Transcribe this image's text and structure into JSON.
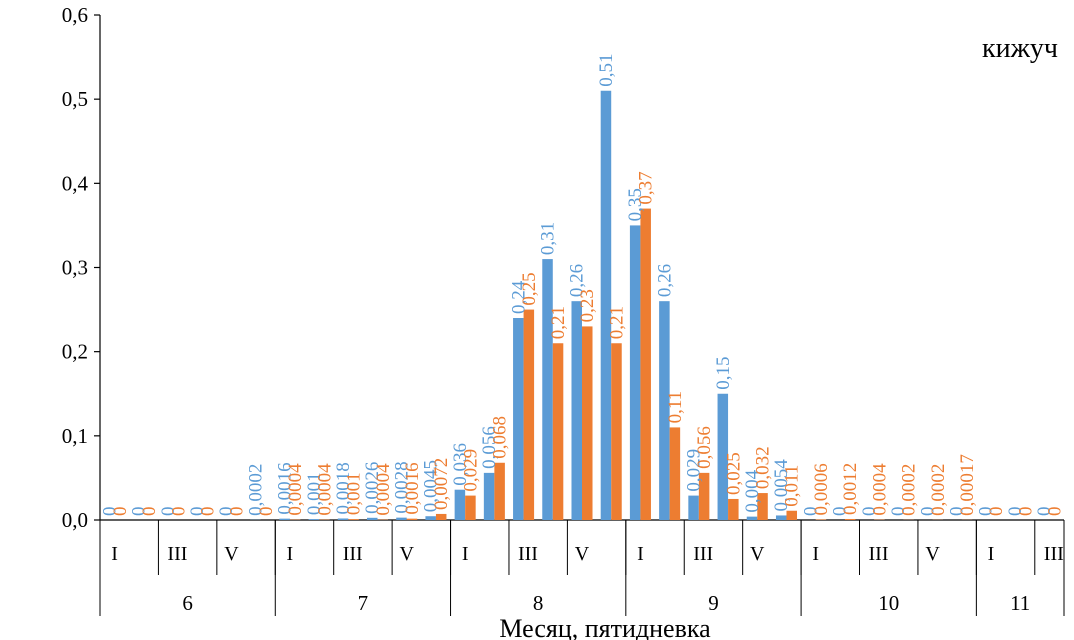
{
  "chart_data": {
    "type": "bar",
    "title": "кижуч",
    "xlabel": "Месяц, пятидневка",
    "ylabel": "",
    "ylim": [
      0,
      0.6
    ],
    "yticks": [
      "0,0",
      "0,1",
      "0,2",
      "0,3",
      "0,4",
      "0,5",
      "0,6"
    ],
    "ytick_values": [
      0,
      0.1,
      0.2,
      0.3,
      0.4,
      0.5,
      0.6
    ],
    "grid": false,
    "legend": "none",
    "categories": [
      "I",
      "",
      "III",
      "",
      "V",
      "",
      "I",
      "",
      "III",
      "",
      "V",
      "",
      "I",
      "",
      "III",
      "",
      "V",
      "",
      "I",
      "",
      "III",
      "",
      "V",
      "",
      "I",
      "",
      "III",
      "",
      "V",
      "",
      "I",
      "",
      "III"
    ],
    "groups": [
      {
        "label": "6",
        "span": 6
      },
      {
        "label": "7",
        "span": 6
      },
      {
        "label": "8",
        "span": 6
      },
      {
        "label": "9",
        "span": 6
      },
      {
        "label": "10",
        "span": 6
      },
      {
        "label": "11",
        "span": 3
      }
    ],
    "series": [
      {
        "color": "#5B9BD5",
        "values": [
          0,
          0,
          0,
          0,
          0,
          0.0002,
          0.0016,
          0.001,
          0.0018,
          0.0026,
          0.0028,
          0.0045,
          0.036,
          0.056,
          0.24,
          0.31,
          0.26,
          0.51,
          0.35,
          0.26,
          0.029,
          0.15,
          0.004,
          0.0054,
          0,
          0,
          0,
          0,
          0,
          0,
          0,
          0,
          0
        ],
        "labels": [
          "0",
          "0",
          "0",
          "0",
          "0",
          "0,0002",
          "0,0016",
          "0,001",
          "0,0018",
          "0,0026",
          "0,0028",
          "0,0045",
          "0,036",
          "0,056",
          "0,24",
          "0,31",
          "0,26",
          "0,51",
          "0,35",
          "0,26",
          "0,029",
          "0,15",
          "0,004",
          "0,0054",
          "0",
          "0",
          "0",
          "0",
          "0",
          "0",
          "0",
          "0",
          "0"
        ]
      },
      {
        "color": "#ED7D31",
        "values": [
          0,
          0,
          0,
          0,
          0,
          0,
          0.0004,
          0.0004,
          0.001,
          0.0004,
          0.0016,
          0.0072,
          0.029,
          0.068,
          0.25,
          0.21,
          0.23,
          0.21,
          0.37,
          0.11,
          0.056,
          0.025,
          0.032,
          0.011,
          0.0006,
          0.0012,
          0.0004,
          0.0002,
          0.0002,
          0.00017,
          0,
          0,
          0
        ],
        "labels": [
          "0",
          "0",
          "0",
          "0",
          "0",
          "0",
          "0,0004",
          "0,0004",
          "0,001",
          "0,0004",
          "0,0016",
          "0,0072",
          "0,029",
          "0,068",
          "0,25",
          "0,21",
          "0,23",
          "0,21",
          "0,37",
          "0,11",
          "0,056",
          "0,025",
          "0,032",
          "0,011",
          "0,0006",
          "0,0012",
          "0,0004",
          "0,0002",
          "0,0002",
          "0,00017",
          "0",
          "0",
          "0"
        ]
      }
    ]
  }
}
